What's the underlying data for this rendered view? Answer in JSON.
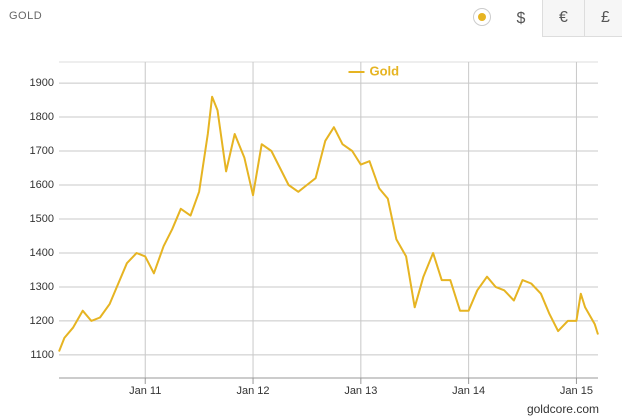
{
  "header": {
    "title": "GOLD",
    "currencies": [
      "$",
      "€",
      "£"
    ]
  },
  "chart_data": {
    "type": "line",
    "legend_position": "top",
    "credits": "goldcore.com",
    "grid": true,
    "xlim": [
      2010.2,
      2015.2
    ],
    "xticks": [
      {
        "value": 2011,
        "label": "Jan 11"
      },
      {
        "value": 2012,
        "label": "Jan 12"
      },
      {
        "value": 2013,
        "label": "Jan 13"
      },
      {
        "value": 2014,
        "label": "Jan 14"
      },
      {
        "value": 2015,
        "label": "Jan 15"
      }
    ],
    "ylim": [
      1032,
      1962
    ],
    "yticks": [
      1100,
      1200,
      1300,
      1400,
      1500,
      1600,
      1700,
      1800,
      1900
    ],
    "x": [
      2010.2,
      2010.25,
      2010.33,
      2010.42,
      2010.5,
      2010.58,
      2010.67,
      2010.75,
      2010.83,
      2010.92,
      2011.0,
      2011.08,
      2011.17,
      2011.25,
      2011.33,
      2011.42,
      2011.5,
      2011.58,
      2011.62,
      2011.67,
      2011.75,
      2011.83,
      2011.92,
      2012.0,
      2012.08,
      2012.17,
      2012.25,
      2012.33,
      2012.42,
      2012.5,
      2012.58,
      2012.67,
      2012.75,
      2012.83,
      2012.92,
      2013.0,
      2013.08,
      2013.17,
      2013.25,
      2013.33,
      2013.42,
      2013.5,
      2013.58,
      2013.67,
      2013.75,
      2013.83,
      2013.92,
      2014.0,
      2014.08,
      2014.17,
      2014.25,
      2014.33,
      2014.42,
      2014.5,
      2014.58,
      2014.67,
      2014.75,
      2014.83,
      2014.92,
      2015.0,
      2015.04,
      2015.08,
      2015.17,
      2015.2
    ],
    "series": [
      {
        "name": "Gold",
        "color": "#e6b422",
        "values": [
          1110,
          1150,
          1180,
          1230,
          1200,
          1210,
          1250,
          1310,
          1370,
          1400,
          1390,
          1340,
          1420,
          1470,
          1530,
          1510,
          1580,
          1750,
          1860,
          1820,
          1640,
          1750,
          1680,
          1570,
          1720,
          1700,
          1650,
          1600,
          1580,
          1600,
          1620,
          1730,
          1770,
          1720,
          1700,
          1660,
          1670,
          1590,
          1560,
          1440,
          1390,
          1240,
          1330,
          1400,
          1320,
          1320,
          1230,
          1230,
          1290,
          1330,
          1300,
          1290,
          1260,
          1320,
          1310,
          1280,
          1220,
          1170,
          1200,
          1200,
          1280,
          1240,
          1190,
          1160
        ]
      }
    ]
  }
}
